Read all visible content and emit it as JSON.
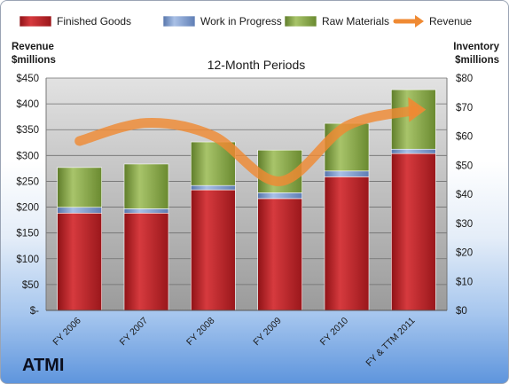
{
  "brand": "ATMI",
  "chart_data": {
    "type": "bar",
    "stacked": true,
    "title": "12-Month Periods",
    "categories": [
      "FY 2006",
      "FY 2007",
      "FY 2008",
      "FY 2009",
      "FY 2010",
      "FY & TTM 2011"
    ],
    "series": [
      {
        "name": "Finished Goods",
        "axis": "right",
        "color": "#c0262b",
        "values": [
          33.5,
          33.5,
          41.5,
          38.5,
          46.0,
          54.0
        ]
      },
      {
        "name": "Work in Progress",
        "axis": "right",
        "color": "#7a9bd0",
        "values": [
          2.0,
          1.5,
          1.5,
          2.0,
          2.0,
          1.5
        ]
      },
      {
        "name": "Raw Materials",
        "axis": "right",
        "color": "#8aaa4a",
        "values": [
          13.7,
          15.4,
          15.0,
          14.7,
          16.4,
          20.5
        ]
      },
      {
        "name": "Revenue",
        "axis": "left",
        "type": "line",
        "color": "#ef8a33",
        "values": [
          328,
          363,
          338,
          250,
          357,
          387
        ]
      }
    ],
    "y_left": {
      "label_lines": [
        "Revenue",
        "$millions"
      ],
      "ylim": [
        0,
        450
      ],
      "ticks": [
        "$-",
        "$50",
        "$100",
        "$150",
        "$200",
        "$250",
        "$300",
        "$350",
        "$400",
        "$450"
      ]
    },
    "y_right": {
      "label_lines": [
        "Inventory",
        "$millions"
      ],
      "ylim": [
        0,
        80
      ],
      "ticks": [
        "$0",
        "$10",
        "$20",
        "$30",
        "$40",
        "$50",
        "$60",
        "$70",
        "$80"
      ]
    },
    "grid": true,
    "legend_position": "top"
  }
}
